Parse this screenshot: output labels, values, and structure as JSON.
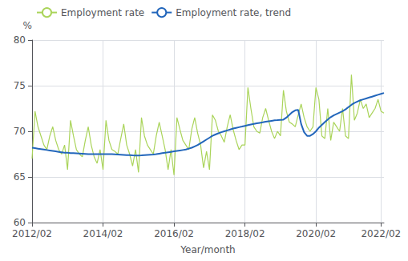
{
  "chart_data": {
    "type": "line",
    "xlabel": "Year/month",
    "ylabel": "%",
    "categories": [
      "2012/02",
      null,
      null,
      null,
      null,
      null,
      null,
      null,
      null,
      null,
      null,
      null,
      null,
      null,
      null,
      null,
      null,
      null,
      null,
      null,
      null,
      null,
      null,
      null,
      "2014/02",
      null,
      null,
      null,
      null,
      null,
      null,
      null,
      null,
      null,
      null,
      null,
      null,
      null,
      null,
      null,
      null,
      null,
      null,
      null,
      null,
      null,
      null,
      null,
      "2016/02",
      null,
      null,
      null,
      null,
      null,
      null,
      null,
      null,
      null,
      null,
      null,
      null,
      null,
      null,
      null,
      null,
      null,
      null,
      null,
      null,
      null,
      null,
      null,
      "2018/02",
      null,
      null,
      null,
      null,
      null,
      null,
      null,
      null,
      null,
      null,
      null,
      null,
      null,
      null,
      null,
      null,
      null,
      null,
      null,
      null,
      null,
      null,
      null,
      "2020/02",
      null,
      null,
      null,
      null,
      null,
      null,
      null,
      null,
      null,
      null,
      null,
      null,
      null,
      null,
      null,
      null,
      null,
      null,
      null,
      null,
      null,
      "2022/02",
      null
    ],
    "series": [
      {
        "name": "Employment rate",
        "color": "#aad45a",
        "values": [
          67.0,
          72.2,
          70.5,
          69.5,
          68.5,
          68.0,
          69.5,
          70.5,
          69.0,
          68.0,
          67.5,
          68.5,
          65.8,
          71.2,
          69.5,
          68.0,
          67.5,
          67.2,
          69.0,
          70.5,
          68.5,
          67.2,
          66.5,
          68.0,
          65.8,
          71.2,
          69.0,
          68.0,
          67.8,
          67.5,
          69.2,
          70.8,
          68.5,
          67.5,
          66.2,
          68.0,
          65.5,
          71.5,
          69.5,
          68.5,
          68.0,
          67.5,
          69.5,
          71.0,
          69.5,
          68.0,
          65.8,
          68.0,
          65.2,
          71.5,
          70.2,
          69.0,
          68.5,
          68.0,
          70.2,
          71.5,
          69.8,
          68.5,
          66.0,
          67.8,
          65.8,
          71.8,
          71.2,
          70.0,
          69.5,
          68.8,
          70.5,
          71.8,
          70.2,
          69.0,
          68.0,
          68.5,
          68.5,
          74.8,
          72.5,
          70.5,
          70.0,
          69.8,
          71.5,
          72.5,
          71.2,
          70.0,
          69.2,
          70.0,
          69.5,
          74.5,
          72.2,
          71.0,
          70.8,
          70.5,
          71.8,
          73.0,
          71.5,
          70.5,
          70.0,
          70.5,
          74.8,
          73.5,
          69.5,
          69.2,
          72.5,
          69.0,
          71.0,
          70.5,
          70.0,
          72.5,
          69.5,
          69.2,
          76.2,
          71.2,
          72.0,
          73.5,
          72.5,
          73.0,
          71.5,
          72.0,
          72.5,
          73.5,
          72.2,
          72.0
        ]
      },
      {
        "name": "Employment rate, trend",
        "color": "#2266bb",
        "values": [
          68.2,
          68.15,
          68.1,
          68.05,
          68.0,
          67.95,
          67.9,
          67.85,
          67.8,
          67.75,
          67.7,
          67.65,
          67.65,
          67.62,
          67.6,
          67.58,
          67.56,
          67.54,
          67.52,
          67.5,
          67.5,
          67.5,
          67.5,
          67.5,
          67.5,
          67.5,
          67.5,
          67.5,
          67.48,
          67.46,
          67.44,
          67.42,
          67.4,
          67.38,
          67.36,
          67.35,
          67.35,
          67.37,
          67.4,
          67.42,
          67.44,
          67.46,
          67.5,
          67.55,
          67.6,
          67.65,
          67.7,
          67.75,
          67.8,
          67.85,
          67.9,
          67.95,
          68.0,
          68.1,
          68.2,
          68.35,
          68.5,
          68.7,
          68.9,
          69.1,
          69.3,
          69.5,
          69.65,
          69.78,
          69.9,
          70.0,
          70.1,
          70.2,
          70.3,
          70.38,
          70.45,
          70.52,
          70.6,
          70.68,
          70.75,
          70.82,
          70.88,
          70.93,
          70.98,
          71.05,
          71.1,
          71.15,
          71.2,
          71.22,
          71.25,
          71.28,
          71.5,
          71.8,
          72.1,
          72.3,
          72.35,
          70.8,
          69.9,
          69.5,
          69.5,
          69.7,
          70.0,
          70.4,
          70.7,
          71.0,
          71.3,
          71.55,
          71.75,
          71.9,
          72.05,
          72.2,
          72.4,
          72.65,
          72.9,
          73.1,
          73.25,
          73.4,
          73.5,
          73.6,
          73.7,
          73.8,
          73.9,
          74.0,
          74.1,
          74.2
        ]
      }
    ],
    "ylim": [
      60,
      80
    ],
    "yticks": [
      60,
      65,
      70,
      75,
      80
    ],
    "grid": true,
    "legend": "upper left"
  }
}
